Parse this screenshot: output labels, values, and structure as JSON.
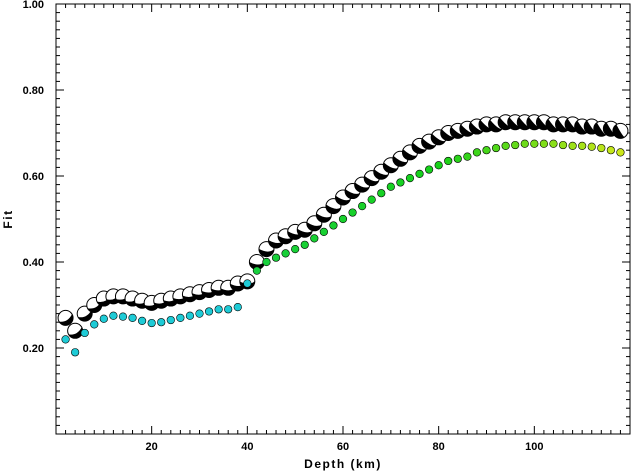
{
  "chart_data": {
    "type": "scatter",
    "title": "",
    "xlabel": "Depth (km)",
    "ylabel": "Fit",
    "xlim": [
      0,
      120
    ],
    "ylim": [
      0.0,
      1.0
    ],
    "x_ticks": [
      20,
      40,
      60,
      80,
      100
    ],
    "x_tick_labels": [
      "20",
      "40",
      "60",
      "80",
      "100"
    ],
    "y_ticks": [
      0.2,
      0.4,
      0.6,
      0.8,
      1.0
    ],
    "y_tick_labels": [
      "0.20",
      "0.40",
      "0.60",
      "0.80",
      "1.00"
    ],
    "grid": false,
    "legend": "none",
    "series": [
      {
        "marker": "focal-mechanism",
        "fill_color": "#000000",
        "x": [
          2,
          4,
          6,
          8,
          10,
          12,
          14,
          16,
          18,
          20,
          22,
          24,
          26,
          28,
          30,
          32,
          34,
          36,
          38,
          40,
          42,
          44,
          46,
          48,
          50,
          52,
          54,
          56,
          58,
          60,
          62,
          64,
          66,
          68,
          70,
          72,
          74,
          76,
          78,
          80,
          82,
          84,
          86,
          88,
          90,
          92,
          94,
          96,
          98,
          100,
          102,
          104,
          106,
          108,
          110,
          112,
          114,
          116,
          118
        ],
        "values": [
          0.27,
          0.24,
          0.28,
          0.3,
          0.315,
          0.32,
          0.32,
          0.315,
          0.31,
          0.305,
          0.31,
          0.315,
          0.32,
          0.325,
          0.33,
          0.335,
          0.34,
          0.34,
          0.35,
          0.355,
          0.4,
          0.43,
          0.45,
          0.46,
          0.47,
          0.475,
          0.49,
          0.51,
          0.53,
          0.55,
          0.565,
          0.58,
          0.595,
          0.61,
          0.625,
          0.64,
          0.655,
          0.67,
          0.68,
          0.69,
          0.7,
          0.705,
          0.71,
          0.715,
          0.72,
          0.72,
          0.725,
          0.725,
          0.725,
          0.725,
          0.725,
          0.72,
          0.72,
          0.72,
          0.715,
          0.715,
          0.71,
          0.71,
          0.705
        ]
      },
      {
        "marker": "dot",
        "colors": {
          "shallow": "#1ecbd6",
          "deep": "#d6e81a",
          "mid": "#17d11a"
        },
        "x": [
          2,
          4,
          6,
          8,
          10,
          12,
          14,
          16,
          18,
          20,
          22,
          24,
          26,
          28,
          30,
          32,
          34,
          36,
          38,
          40,
          42,
          44,
          46,
          48,
          50,
          52,
          54,
          56,
          58,
          60,
          62,
          64,
          66,
          68,
          70,
          72,
          74,
          76,
          78,
          80,
          82,
          84,
          86,
          88,
          90,
          92,
          94,
          96,
          98,
          100,
          102,
          104,
          106,
          108,
          110,
          112,
          114,
          116,
          118
        ],
        "values": [
          0.22,
          0.19,
          0.235,
          0.255,
          0.268,
          0.275,
          0.273,
          0.27,
          0.263,
          0.258,
          0.26,
          0.265,
          0.27,
          0.275,
          0.28,
          0.285,
          0.29,
          0.29,
          0.295,
          0.35,
          0.38,
          0.4,
          0.41,
          0.42,
          0.43,
          0.44,
          0.455,
          0.47,
          0.485,
          0.5,
          0.515,
          0.53,
          0.545,
          0.56,
          0.575,
          0.585,
          0.595,
          0.605,
          0.615,
          0.625,
          0.635,
          0.64,
          0.645,
          0.655,
          0.66,
          0.665,
          0.67,
          0.672,
          0.675,
          0.675,
          0.675,
          0.675,
          0.672,
          0.67,
          0.67,
          0.668,
          0.665,
          0.66,
          0.655
        ]
      }
    ]
  }
}
